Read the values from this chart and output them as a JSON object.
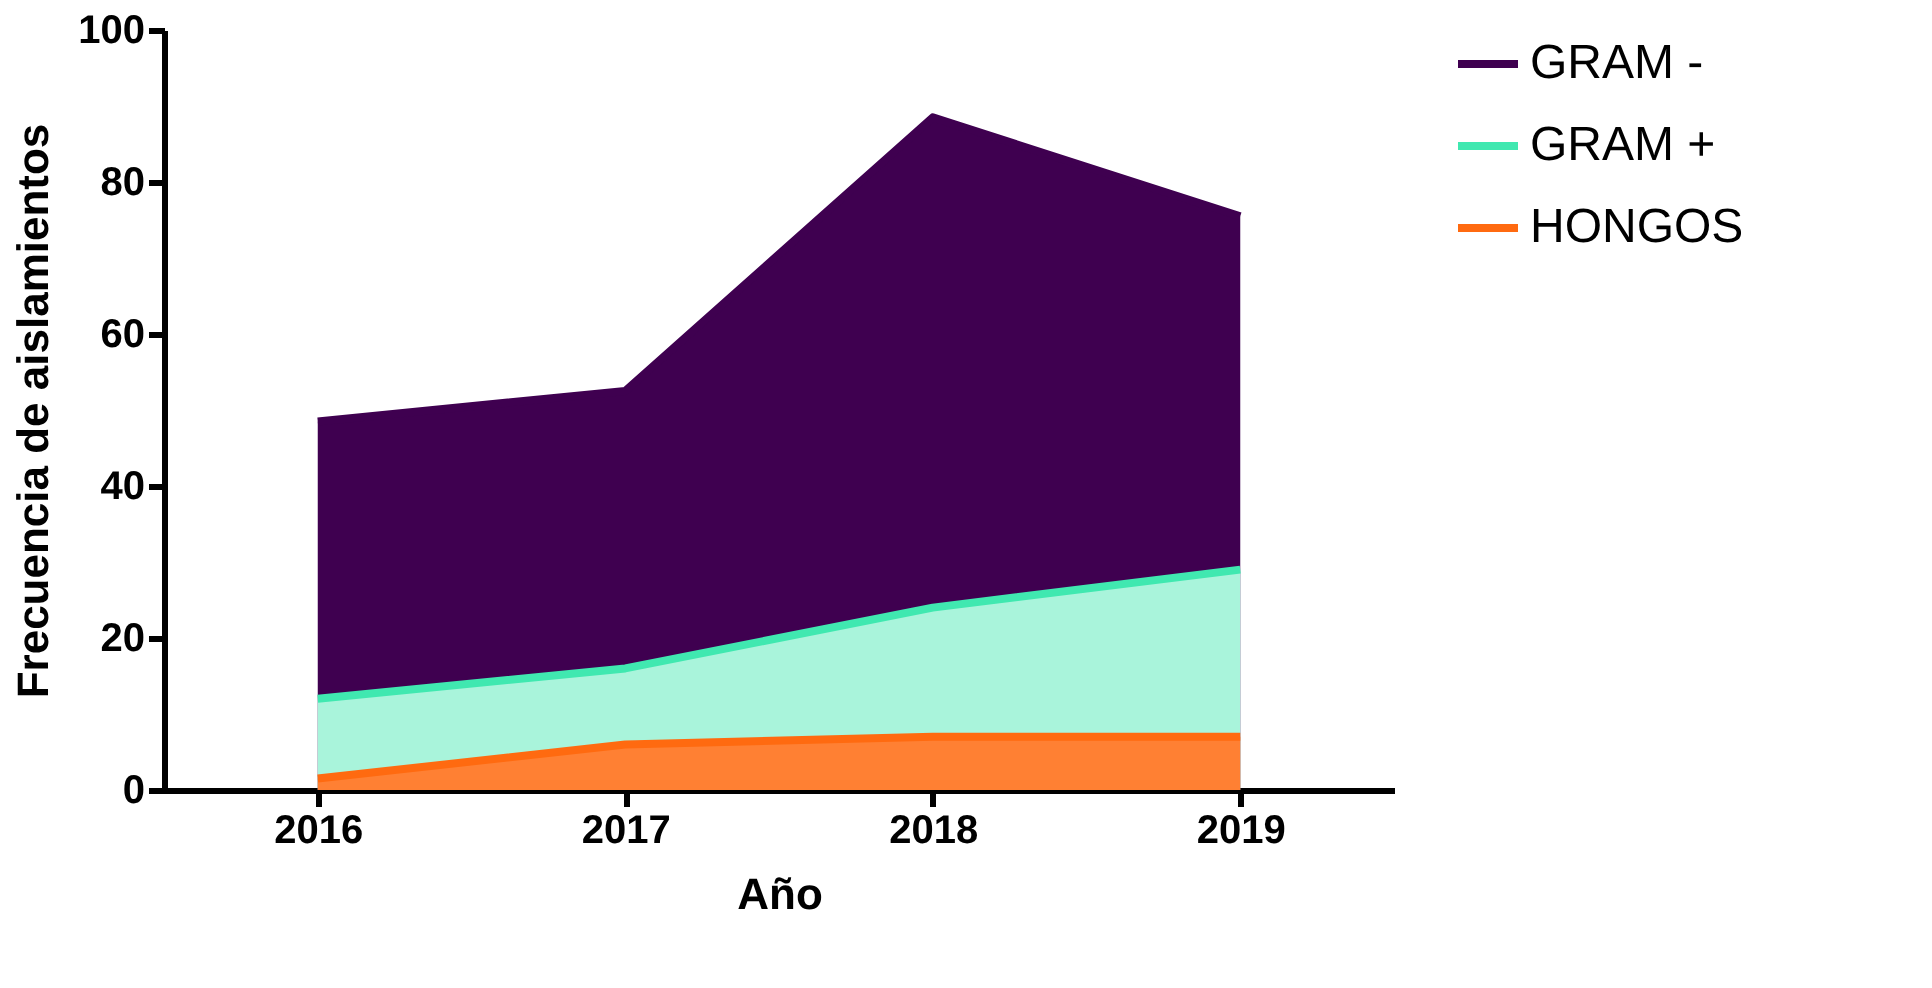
{
  "chart_data": {
    "type": "area",
    "xlabel": "Año",
    "ylabel": "Frecuencia de aislamientos",
    "categories": [
      "2016",
      "2017",
      "2018",
      "2019"
    ],
    "series": [
      {
        "name": "GRAM -",
        "color": "#3f0050",
        "values": [
          48.5,
          52.5,
          88.5,
          75.5
        ]
      },
      {
        "name": "GRAM +",
        "color": "#40e8b0",
        "values": [
          12,
          16,
          24,
          29
        ]
      },
      {
        "name": "HONGOS",
        "color": "#ff6a10",
        "values": [
          1.5,
          6,
          7,
          7
        ]
      }
    ],
    "ylim": [
      0,
      100
    ],
    "yticks": [
      0,
      20,
      40,
      60,
      80,
      100
    ],
    "grid": false,
    "legend": "top right"
  }
}
